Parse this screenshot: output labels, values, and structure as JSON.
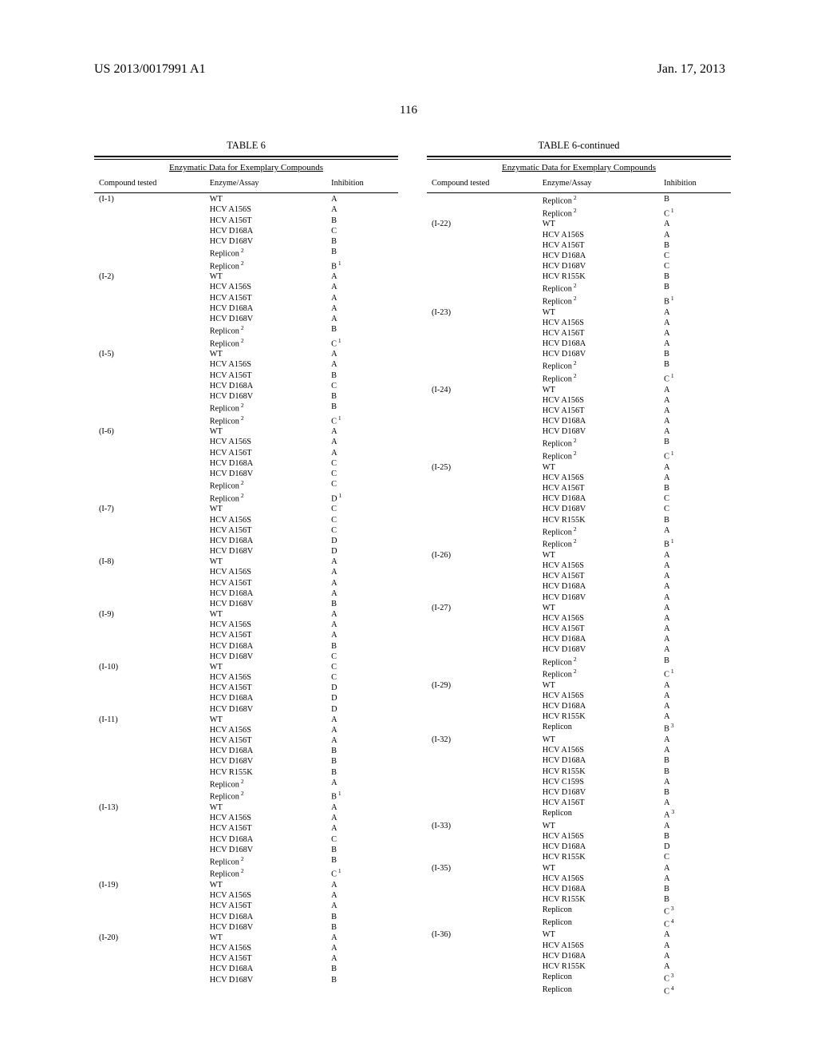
{
  "header": {
    "left": "US 2013/0017991 A1",
    "right": "Jan. 17, 2013"
  },
  "page_number": "116",
  "tables": {
    "left": {
      "title": "TABLE 6",
      "subtitle": "Enzymatic Data for Exemplary Compounds",
      "columns": [
        "Compound tested",
        "Enzyme/Assay",
        "Inhibition"
      ]
    },
    "right": {
      "title": "TABLE 6-continued",
      "subtitle": "Enzymatic Data for Exemplary Compounds",
      "columns": [
        "Compound tested",
        "Enzyme/Assay",
        "Inhibition"
      ]
    }
  },
  "left_rows": [
    {
      "c": "(I-1)",
      "e": "WT",
      "i": "A"
    },
    {
      "c": "",
      "e": "HCV A156S",
      "i": "A"
    },
    {
      "c": "",
      "e": "HCV A156T",
      "i": "B"
    },
    {
      "c": "",
      "e": "HCV D168A",
      "i": "C"
    },
    {
      "c": "",
      "e": "HCV D168V",
      "i": "B"
    },
    {
      "c": "",
      "e": "Replicon",
      "i": "B",
      "es": "2"
    },
    {
      "c": "",
      "e": "Replicon",
      "i": "B",
      "es": "2",
      "is": "1"
    },
    {
      "c": "(I-2)",
      "e": "WT",
      "i": "A"
    },
    {
      "c": "",
      "e": "HCV A156S",
      "i": "A"
    },
    {
      "c": "",
      "e": "HCV A156T",
      "i": "A"
    },
    {
      "c": "",
      "e": "HCV D168A",
      "i": "A"
    },
    {
      "c": "",
      "e": "HCV D168V",
      "i": "A"
    },
    {
      "c": "",
      "e": "Replicon",
      "i": "B",
      "es": "2"
    },
    {
      "c": "",
      "e": "Replicon",
      "i": "C",
      "es": "2",
      "is": "1"
    },
    {
      "c": "(I-5)",
      "e": "WT",
      "i": "A"
    },
    {
      "c": "",
      "e": "HCV A156S",
      "i": "A"
    },
    {
      "c": "",
      "e": "HCV A156T",
      "i": "B"
    },
    {
      "c": "",
      "e": "HCV D168A",
      "i": "C"
    },
    {
      "c": "",
      "e": "HCV D168V",
      "i": "B"
    },
    {
      "c": "",
      "e": "Replicon",
      "i": "B",
      "es": "2"
    },
    {
      "c": "",
      "e": "Replicon",
      "i": "C",
      "es": "2",
      "is": "1"
    },
    {
      "c": "(I-6)",
      "e": "WT",
      "i": "A"
    },
    {
      "c": "",
      "e": "HCV A156S",
      "i": "A"
    },
    {
      "c": "",
      "e": "HCV A156T",
      "i": "A"
    },
    {
      "c": "",
      "e": "HCV D168A",
      "i": "C"
    },
    {
      "c": "",
      "e": "HCV D168V",
      "i": "C"
    },
    {
      "c": "",
      "e": "Replicon",
      "i": "C",
      "es": "2"
    },
    {
      "c": "",
      "e": "Replicon",
      "i": "D",
      "es": "2",
      "is": "1"
    },
    {
      "c": "(I-7)",
      "e": "WT",
      "i": "C"
    },
    {
      "c": "",
      "e": "HCV A156S",
      "i": "C"
    },
    {
      "c": "",
      "e": "HCV A156T",
      "i": "C"
    },
    {
      "c": "",
      "e": "HCV D168A",
      "i": "D"
    },
    {
      "c": "",
      "e": "HCV D168V",
      "i": "D"
    },
    {
      "c": "(I-8)",
      "e": "WT",
      "i": "A"
    },
    {
      "c": "",
      "e": "HCV A156S",
      "i": "A"
    },
    {
      "c": "",
      "e": "HCV A156T",
      "i": "A"
    },
    {
      "c": "",
      "e": "HCV D168A",
      "i": "A"
    },
    {
      "c": "",
      "e": "HCV D168V",
      "i": "B"
    },
    {
      "c": "(I-9)",
      "e": "WT",
      "i": "A"
    },
    {
      "c": "",
      "e": "HCV A156S",
      "i": "A"
    },
    {
      "c": "",
      "e": "HCV A156T",
      "i": "A"
    },
    {
      "c": "",
      "e": "HCV D168A",
      "i": "B"
    },
    {
      "c": "",
      "e": "HCV D168V",
      "i": "C"
    },
    {
      "c": "(I-10)",
      "e": "WT",
      "i": "C"
    },
    {
      "c": "",
      "e": "HCV A156S",
      "i": "C"
    },
    {
      "c": "",
      "e": "HCV A156T",
      "i": "D"
    },
    {
      "c": "",
      "e": "HCV D168A",
      "i": "D"
    },
    {
      "c": "",
      "e": "HCV D168V",
      "i": "D"
    },
    {
      "c": "(I-11)",
      "e": "WT",
      "i": "A"
    },
    {
      "c": "",
      "e": "HCV A156S",
      "i": "A"
    },
    {
      "c": "",
      "e": "HCV A156T",
      "i": "A"
    },
    {
      "c": "",
      "e": "HCV D168A",
      "i": "B"
    },
    {
      "c": "",
      "e": "HCV D168V",
      "i": "B"
    },
    {
      "c": "",
      "e": "HCV R155K",
      "i": "B"
    },
    {
      "c": "",
      "e": "Replicon",
      "i": "A",
      "es": "2"
    },
    {
      "c": "",
      "e": "Replicon",
      "i": "B",
      "es": "2",
      "is": "1"
    },
    {
      "c": "(I-13)",
      "e": "WT",
      "i": "A"
    },
    {
      "c": "",
      "e": "HCV A156S",
      "i": "A"
    },
    {
      "c": "",
      "e": "HCV A156T",
      "i": "A"
    },
    {
      "c": "",
      "e": "HCV D168A",
      "i": "C"
    },
    {
      "c": "",
      "e": "HCV D168V",
      "i": "B"
    },
    {
      "c": "",
      "e": "Replicon",
      "i": "B",
      "es": "2"
    },
    {
      "c": "",
      "e": "Replicon",
      "i": "C",
      "es": "2",
      "is": "1"
    },
    {
      "c": "(I-19)",
      "e": "WT",
      "i": "A"
    },
    {
      "c": "",
      "e": "HCV A156S",
      "i": "A"
    },
    {
      "c": "",
      "e": "HCV A156T",
      "i": "A"
    },
    {
      "c": "",
      "e": "HCV D168A",
      "i": "B"
    },
    {
      "c": "",
      "e": "HCV D168V",
      "i": "B"
    },
    {
      "c": "(I-20)",
      "e": "WT",
      "i": "A"
    },
    {
      "c": "",
      "e": "HCV A156S",
      "i": "A"
    },
    {
      "c": "",
      "e": "HCV A156T",
      "i": "A"
    },
    {
      "c": "",
      "e": "HCV D168A",
      "i": "B"
    },
    {
      "c": "",
      "e": "HCV D168V",
      "i": "B"
    }
  ],
  "right_rows": [
    {
      "c": "",
      "e": "Replicon",
      "i": "B",
      "es": "2"
    },
    {
      "c": "",
      "e": "Replicon",
      "i": "C",
      "es": "2",
      "is": "1"
    },
    {
      "c": "(I-22)",
      "e": "WT",
      "i": "A"
    },
    {
      "c": "",
      "e": "HCV A156S",
      "i": "A"
    },
    {
      "c": "",
      "e": "HCV A156T",
      "i": "B"
    },
    {
      "c": "",
      "e": "HCV D168A",
      "i": "C"
    },
    {
      "c": "",
      "e": "HCV D168V",
      "i": "C"
    },
    {
      "c": "",
      "e": "HCV R155K",
      "i": "B"
    },
    {
      "c": "",
      "e": "Replicon",
      "i": "B",
      "es": "2"
    },
    {
      "c": "",
      "e": "Replicon",
      "i": "B",
      "es": "2",
      "is": "1"
    },
    {
      "c": "(I-23)",
      "e": "WT",
      "i": "A"
    },
    {
      "c": "",
      "e": "HCV A156S",
      "i": "A"
    },
    {
      "c": "",
      "e": "HCV A156T",
      "i": "A"
    },
    {
      "c": "",
      "e": "HCV D168A",
      "i": "A"
    },
    {
      "c": "",
      "e": "HCV D168V",
      "i": "B"
    },
    {
      "c": "",
      "e": "Replicon",
      "i": "B",
      "es": "2"
    },
    {
      "c": "",
      "e": "Replicon",
      "i": "C",
      "es": "2",
      "is": "1"
    },
    {
      "c": "(I-24)",
      "e": "WT",
      "i": "A"
    },
    {
      "c": "",
      "e": "HCV A156S",
      "i": "A"
    },
    {
      "c": "",
      "e": "HCV A156T",
      "i": "A"
    },
    {
      "c": "",
      "e": "HCV D168A",
      "i": "A"
    },
    {
      "c": "",
      "e": "HCV D168V",
      "i": "A"
    },
    {
      "c": "",
      "e": "Replicon",
      "i": "B",
      "es": "2"
    },
    {
      "c": "",
      "e": "Replicon",
      "i": "C",
      "es": "2",
      "is": "1"
    },
    {
      "c": "(I-25)",
      "e": "WT",
      "i": "A"
    },
    {
      "c": "",
      "e": "HCV A156S",
      "i": "A"
    },
    {
      "c": "",
      "e": "HCV A156T",
      "i": "B"
    },
    {
      "c": "",
      "e": "HCV D168A",
      "i": "C"
    },
    {
      "c": "",
      "e": "HCV D168V",
      "i": "C"
    },
    {
      "c": "",
      "e": "HCV R155K",
      "i": "B"
    },
    {
      "c": "",
      "e": "Replicon",
      "i": "A",
      "es": "2"
    },
    {
      "c": "",
      "e": "Replicon",
      "i": "B",
      "es": "2",
      "is": "1"
    },
    {
      "c": "(I-26)",
      "e": "WT",
      "i": "A"
    },
    {
      "c": "",
      "e": "HCV A156S",
      "i": "A"
    },
    {
      "c": "",
      "e": "HCV A156T",
      "i": "A"
    },
    {
      "c": "",
      "e": "HCV D168A",
      "i": "A"
    },
    {
      "c": "",
      "e": "HCV D168V",
      "i": "A"
    },
    {
      "c": "(I-27)",
      "e": "WT",
      "i": "A"
    },
    {
      "c": "",
      "e": "HCV A156S",
      "i": "A"
    },
    {
      "c": "",
      "e": "HCV A156T",
      "i": "A"
    },
    {
      "c": "",
      "e": "HCV D168A",
      "i": "A"
    },
    {
      "c": "",
      "e": "HCV D168V",
      "i": "A"
    },
    {
      "c": "",
      "e": "Replicon",
      "i": "B",
      "es": "2"
    },
    {
      "c": "",
      "e": "Replicon",
      "i": "C",
      "es": "2",
      "is": "1"
    },
    {
      "c": "(I-29)",
      "e": "WT",
      "i": "A"
    },
    {
      "c": "",
      "e": "HCV A156S",
      "i": "A"
    },
    {
      "c": "",
      "e": "HCV D168A",
      "i": "A"
    },
    {
      "c": "",
      "e": "HCV R155K",
      "i": "A"
    },
    {
      "c": "",
      "e": "Replicon",
      "i": "B",
      "is": "3"
    },
    {
      "c": "(I-32)",
      "e": "WT",
      "i": "A"
    },
    {
      "c": "",
      "e": "HCV A156S",
      "i": "A"
    },
    {
      "c": "",
      "e": "HCV D168A",
      "i": "B"
    },
    {
      "c": "",
      "e": "HCV R155K",
      "i": "B"
    },
    {
      "c": "",
      "e": "HCV C159S",
      "i": "A"
    },
    {
      "c": "",
      "e": "HCV D168V",
      "i": "B"
    },
    {
      "c": "",
      "e": "HCV A156T",
      "i": "A"
    },
    {
      "c": "",
      "e": "Replicon",
      "i": "A",
      "is": "3"
    },
    {
      "c": "(I-33)",
      "e": "WT",
      "i": "A"
    },
    {
      "c": "",
      "e": "HCV A156S",
      "i": "B"
    },
    {
      "c": "",
      "e": "HCV D168A",
      "i": "D"
    },
    {
      "c": "",
      "e": "HCV R155K",
      "i": "C"
    },
    {
      "c": "(I-35)",
      "e": "WT",
      "i": "A"
    },
    {
      "c": "",
      "e": "HCV A156S",
      "i": "A"
    },
    {
      "c": "",
      "e": "HCV D168A",
      "i": "B"
    },
    {
      "c": "",
      "e": "HCV R155K",
      "i": "B"
    },
    {
      "c": "",
      "e": "Replicon",
      "i": "C",
      "is": "3"
    },
    {
      "c": "",
      "e": "Replicon",
      "i": "C",
      "is": "4"
    },
    {
      "c": "(I-36)",
      "e": "WT",
      "i": "A"
    },
    {
      "c": "",
      "e": "HCV A156S",
      "i": "A"
    },
    {
      "c": "",
      "e": "HCV D168A",
      "i": "A"
    },
    {
      "c": "",
      "e": "HCV R155K",
      "i": "A"
    },
    {
      "c": "",
      "e": "Replicon",
      "i": "C",
      "is": "3"
    },
    {
      "c": "",
      "e": "Replicon",
      "i": "C",
      "is": "4"
    }
  ]
}
